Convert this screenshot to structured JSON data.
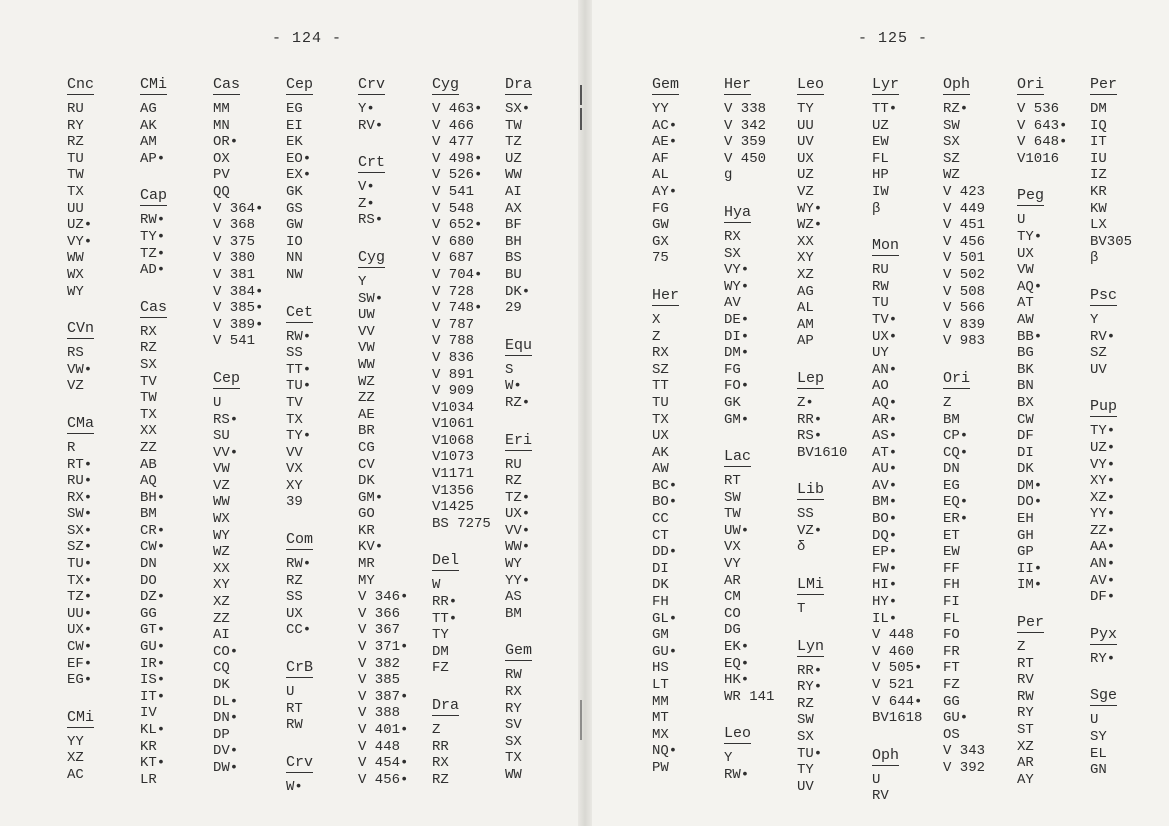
{
  "left_page": {
    "page_number": "- 124 -",
    "columns": [
      [
        {
          "name": "Cnc",
          "items": [
            "RU",
            "RY",
            "RZ",
            "TU",
            "TW",
            "TX",
            "UU",
            "UZ•",
            "VY•",
            "WW",
            "WX",
            "WY"
          ]
        },
        {
          "name": "CVn",
          "items": [
            "RS",
            "VW•",
            "VZ"
          ]
        },
        {
          "name": "CMa",
          "items": [
            "R",
            "RT•",
            "RU•",
            "RX•",
            "SW•",
            "SX•",
            "SZ•",
            "TU•",
            "TX•",
            "TZ•",
            "UU•",
            "UX•",
            "CW•",
            "EF•",
            "EG•"
          ]
        },
        {
          "name": "CMi",
          "items": [
            "YY",
            "XZ",
            "AC"
          ]
        }
      ],
      [
        {
          "name": "CMi",
          "items": [
            "AG",
            "AK",
            "AM",
            "AP•"
          ]
        },
        {
          "name": "Cap",
          "items": [
            "RW•",
            "TY•",
            "TZ•",
            "AD•"
          ]
        },
        {
          "name": "Cas",
          "items": [
            "RX",
            "RZ",
            "SX",
            "TV",
            "TW",
            "TX",
            "XX",
            "ZZ",
            "AB",
            "AQ",
            "BH•",
            "BM",
            "CR•",
            "CW•",
            "DN",
            "DO",
            "DZ•",
            "GG",
            "GT•",
            "GU•",
            "IR•",
            "IS•",
            "IT•",
            "IV",
            "KL•",
            "KR",
            "KT•",
            "LR"
          ]
        }
      ],
      [
        {
          "name": "Cas",
          "items": [
            "MM",
            "MN",
            "OR•",
            "OX",
            "PV",
            "QQ",
            "V 364•",
            "V 368",
            "V 375",
            "V 380",
            "V 381",
            "V 384•",
            "V 385•",
            "V 389•",
            "V 541"
          ]
        },
        {
          "name": "Cep",
          "items": [
            "U",
            "RS•",
            "SU",
            "VV•",
            "VW",
            "VZ",
            "WW",
            "WX",
            "WY",
            "WZ",
            "XX",
            "XY",
            "XZ",
            "ZZ",
            "AI",
            "CO•",
            "CQ",
            "DK",
            "DL•",
            "DN•",
            "DP",
            "DV•",
            "DW•"
          ]
        }
      ],
      [
        {
          "name": "Cep",
          "items": [
            "EG",
            "EI",
            "EK",
            "EO•",
            "EX•",
            "GK",
            "GS",
            "GW",
            "IO",
            "NN",
            "NW"
          ]
        },
        {
          "name": "Cet",
          "items": [
            "RW•",
            "SS",
            "TT•",
            "TU•",
            "TV",
            "TX",
            "TY•",
            "VV",
            "VX",
            "XY",
            "39"
          ]
        },
        {
          "name": "Com",
          "items": [
            "RW•",
            "RZ",
            "SS",
            "UX",
            "CC•"
          ]
        },
        {
          "name": "CrB",
          "items": [
            "U",
            "RT",
            "RW"
          ]
        },
        {
          "name": "Crv",
          "items": [
            "W•"
          ]
        }
      ],
      [
        {
          "name": "Crv",
          "items": [
            "Y•",
            "RV•"
          ]
        },
        {
          "name": "Crt",
          "items": [
            "V•",
            "Z•",
            "RS•"
          ]
        },
        {
          "name": "Cyg",
          "items": [
            "Y",
            "SW•",
            "UW",
            "VV",
            "VW",
            "WW",
            "WZ",
            "ZZ",
            "AE",
            "BR",
            "CG",
            "CV",
            "DK",
            "GM•",
            "GO",
            "KR",
            "KV•",
            "MR",
            "MY",
            "V 346•",
            "V 366",
            "V 367",
            "V 371•",
            "V 382",
            "V 385",
            "V 387•",
            "V 388",
            "V 401•",
            "V 448",
            "V 454•",
            "V 456•"
          ]
        }
      ],
      [
        {
          "name": "Cyg",
          "items": [
            "V 463•",
            "V 466",
            "V 477",
            "V 498•",
            "V 526•",
            "V 541",
            "V 548",
            "V 652•",
            "V 680",
            "V 687",
            "V 704•",
            "V 728",
            "V 748•",
            "V 787",
            "V 788",
            "V 836",
            "V 891",
            "V 909",
            "V1034",
            "V1061",
            "V1068",
            "V1073",
            "V1171",
            "V1356",
            "V1425",
            "BS 7275"
          ]
        },
        {
          "name": "Del",
          "items": [
            "W",
            "RR•",
            "TT•",
            "TY",
            "DM",
            "FZ"
          ]
        },
        {
          "name": "Dra",
          "items": [
            "Z",
            "RR",
            "RX",
            "RZ"
          ]
        }
      ],
      [
        {
          "name": "Dra",
          "items": [
            "SX•",
            "TW",
            "TZ",
            "UZ",
            "WW",
            "AI",
            "AX",
            "BF",
            "BH",
            "BS",
            "BU",
            "DK•",
            "29"
          ]
        },
        {
          "name": "Equ",
          "items": [
            "S",
            "W•",
            "RZ•"
          ]
        },
        {
          "name": "Eri",
          "items": [
            "RU",
            "RZ",
            "TZ•",
            "UX•",
            "VV•",
            "WW•",
            "WY",
            "YY•",
            "AS",
            "BM"
          ]
        },
        {
          "name": "Gem",
          "items": [
            "RW",
            "RX",
            "RY",
            "SV",
            "SX",
            "TX",
            "WW"
          ]
        }
      ]
    ]
  },
  "right_page": {
    "page_number": "- 125 -",
    "columns": [
      [
        {
          "name": "Gem",
          "items": [
            "YY",
            "AC•",
            "AE•",
            "AF",
            "AL",
            "AY•",
            "FG",
            "GW",
            "GX",
            "75"
          ]
        },
        {
          "name": "Her",
          "items": [
            "X",
            "Z",
            "RX",
            "SZ",
            "TT",
            "TU",
            "TX",
            "UX",
            "AK",
            "AW",
            "BC•",
            "BO•",
            "CC",
            "CT",
            "DD•",
            "DI",
            "DK",
            "FH",
            "GL•",
            "GM",
            "GU•",
            "HS",
            "LT",
            "MM",
            "MT",
            "MX",
            "NQ•",
            "PW"
          ]
        }
      ],
      [
        {
          "name": "Her",
          "items": [
            "V 338",
            "V 342",
            "V 359",
            "V 450",
            "g"
          ]
        },
        {
          "name": "Hya",
          "items": [
            "RX",
            "SX",
            "VY•",
            "WY•",
            "AV",
            "DE•",
            "DI•",
            "DM•",
            "FG",
            "FO•",
            "GK",
            "GM•"
          ]
        },
        {
          "name": "Lac",
          "items": [
            "RT",
            "SW",
            "TW",
            "UW•",
            "VX",
            "VY",
            "AR",
            "CM",
            "CO",
            "DG",
            "EK•",
            "EQ•",
            "HK•",
            "WR 141"
          ]
        },
        {
          "name": "Leo",
          "items": [
            "Y",
            "RW•"
          ]
        }
      ],
      [
        {
          "name": "Leo",
          "items": [
            "TY",
            "UU",
            "UV",
            "UX",
            "UZ",
            "VZ",
            "WY•",
            "WZ•",
            "XX",
            "XY",
            "XZ",
            "AG",
            "AL",
            "AM",
            "AP"
          ]
        },
        {
          "name": "Lep",
          "items": [
            "Z•",
            "RR•",
            "RS•",
            "BV1610"
          ]
        },
        {
          "name": "Lib",
          "items": [
            "SS",
            "VZ•",
            "δ"
          ]
        },
        {
          "name": "LMi",
          "items": [
            "T"
          ]
        },
        {
          "name": "Lyn",
          "items": [
            "RR•",
            "RY•",
            "RZ",
            "SW",
            "SX",
            "TU•",
            "TY",
            "UV"
          ]
        }
      ],
      [
        {
          "name": "Lyr",
          "items": [
            "TT•",
            "UZ",
            "EW",
            "FL",
            "HP",
            "IW",
            "β"
          ]
        },
        {
          "name": "Mon",
          "items": [
            "RU",
            "RW",
            "TU",
            "TV•",
            "UX•",
            "UY",
            "AN•",
            "AO",
            "AQ•",
            "AR•",
            "AS•",
            "AT•",
            "AU•",
            "AV•",
            "BM•",
            "BO•",
            "DQ•",
            "EP•",
            "FW•",
            "HI•",
            "HY•",
            "IL•",
            "V 448",
            "V 460",
            "V 505•",
            "V 521",
            "V 644•",
            "BV1618"
          ]
        },
        {
          "name": "Oph",
          "items": [
            "U",
            "RV"
          ]
        }
      ],
      [
        {
          "name": "Oph",
          "items": [
            "RZ•",
            "SW",
            "SX",
            "SZ",
            "WZ",
            "V 423",
            "V 449",
            "V 451",
            "V 456",
            "V 501",
            "V 502",
            "V 508",
            "V 566",
            "V 839",
            "V 983"
          ]
        },
        {
          "name": "Ori",
          "items": [
            "Z",
            "BM",
            "CP•",
            "CQ•",
            "DN",
            "EG",
            "EQ•",
            "ER•",
            "ET",
            "EW",
            "FF",
            "FH",
            "FI",
            "FL",
            "FO",
            "FR",
            "FT",
            "FZ",
            "GG",
            "GU•",
            "OS",
            "V 343",
            "V 392"
          ]
        }
      ],
      [
        {
          "name": "Ori",
          "items": [
            "V 536",
            "V 643•",
            "V 648•",
            "V1016"
          ]
        },
        {
          "name": "Peg",
          "items": [
            "U",
            "TY•",
            "UX",
            "VW",
            "AQ•",
            "AT",
            "AW",
            "BB•",
            "BG",
            "BK",
            "BN",
            "BX",
            "CW",
            "DF",
            "DI",
            "DK",
            "DM•",
            "DO•",
            "EH",
            "GH",
            "GP",
            "II•",
            "IM•"
          ]
        },
        {
          "name": "Per",
          "items": [
            "Z",
            "RT",
            "RV",
            "RW",
            "RY",
            "ST",
            "XZ",
            "AR",
            "AY"
          ]
        }
      ],
      [
        {
          "name": "Per",
          "items": [
            "DM",
            "IQ",
            "IT",
            "IU",
            "IZ",
            "KR",
            "KW",
            "LX",
            "BV305",
            "β"
          ]
        },
        {
          "name": "Psc",
          "items": [
            "Y",
            "RV•",
            "SZ",
            "UV"
          ]
        },
        {
          "name": "Pup",
          "items": [
            "TY•",
            "UZ•",
            "VY•",
            "XY•",
            "XZ•",
            "YY•",
            "ZZ•",
            "AA•",
            "AN•",
            "AV•",
            "DF•"
          ]
        },
        {
          "name": "Pyx",
          "items": [
            "RY•"
          ]
        },
        {
          "name": "Sge",
          "items": [
            "U",
            "SY",
            "EL",
            "GN"
          ]
        }
      ]
    ]
  }
}
